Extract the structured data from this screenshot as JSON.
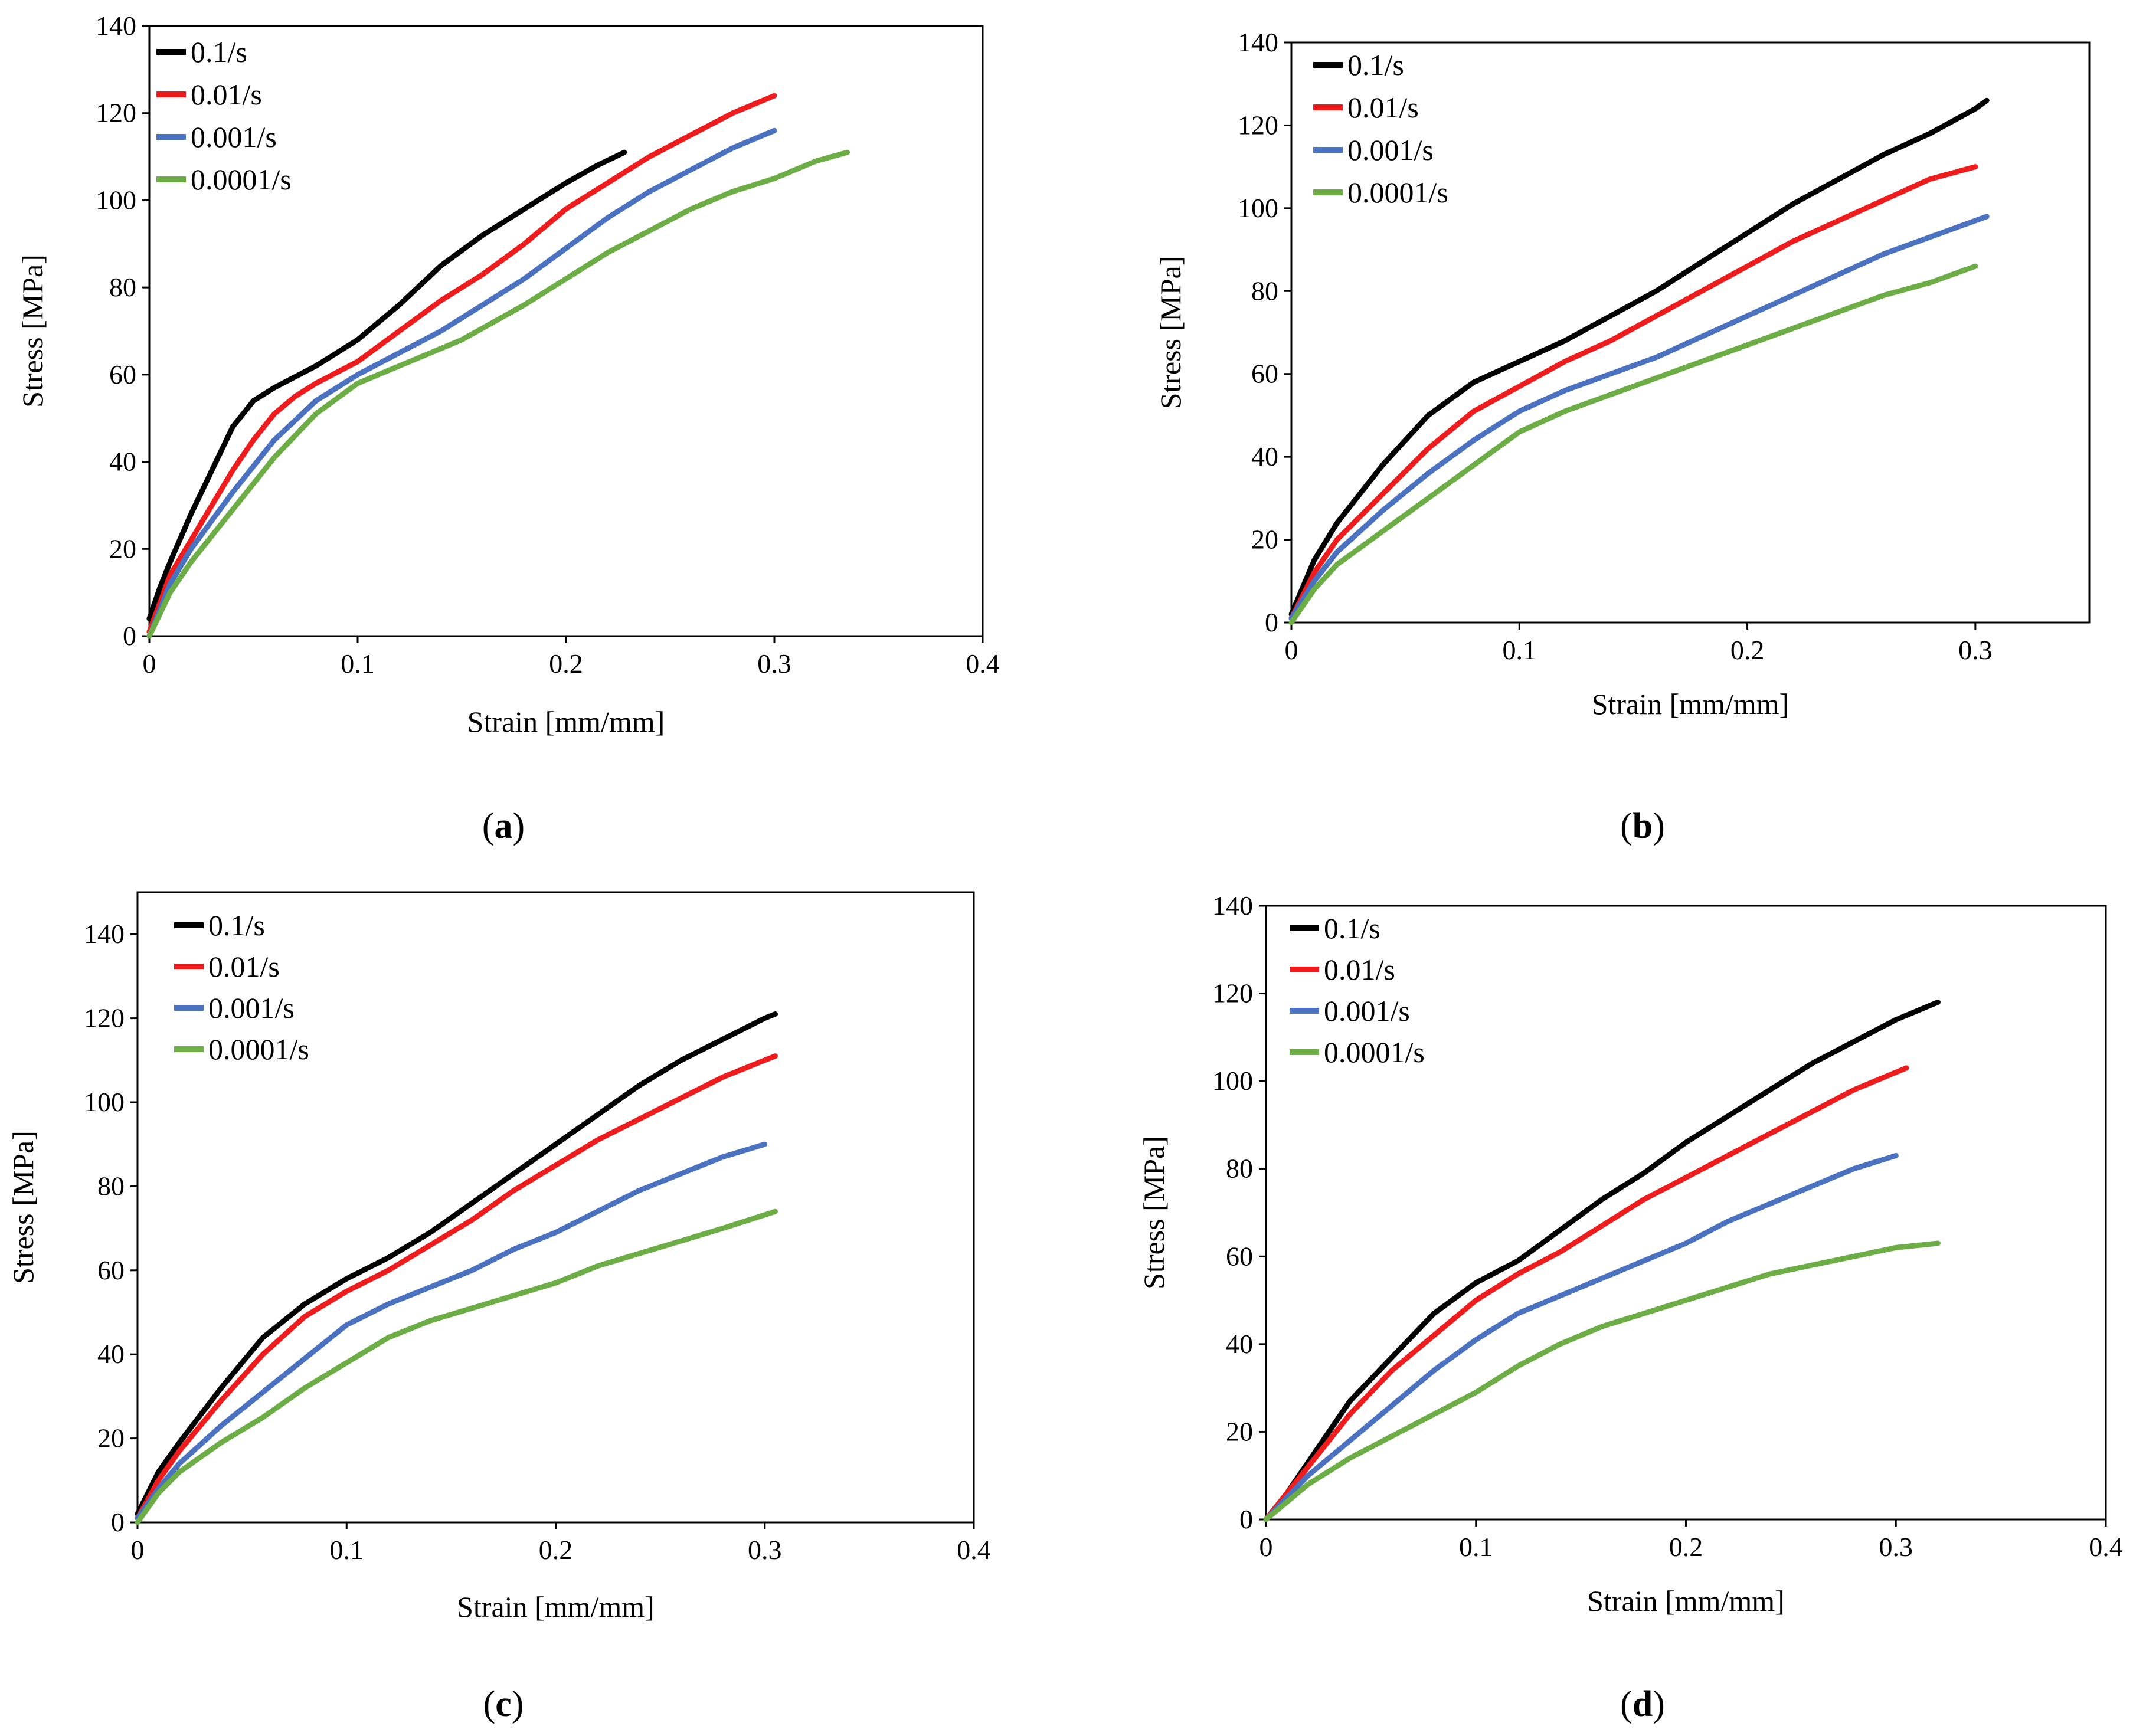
{
  "figure": {
    "legend_entries": [
      "0.1/s",
      "0.01/s",
      "0.001/s",
      "0.0001/s"
    ],
    "series_colors": [
      "#000000",
      "#ee1c1c",
      "#4a72c0",
      "#6cad45"
    ]
  },
  "chart_data": [
    {
      "type": "line",
      "caption": "(a)",
      "caption_letter": "a",
      "xlabel": "Strain [mm/mm]",
      "ylabel": "Stress [MPa]",
      "xlim": [
        0,
        0.4
      ],
      "ylim": [
        0,
        140
      ],
      "xticks": [
        0,
        0.1,
        0.2,
        0.3,
        0.4
      ],
      "xtick_labels": [
        "0",
        "0.1",
        "0.2",
        "0.3",
        "0.4"
      ],
      "yticks": [
        0,
        20,
        40,
        60,
        80,
        100,
        120,
        140
      ],
      "ytick_labels": [
        "0",
        "20",
        "40",
        "60",
        "80",
        "100",
        "120",
        "140"
      ],
      "legend_position": "top-left",
      "series": [
        {
          "name": "0.1/s",
          "color": "#000000",
          "x": [
            0,
            0.005,
            0.01,
            0.02,
            0.03,
            0.04,
            0.05,
            0.06,
            0.08,
            0.1,
            0.12,
            0.14,
            0.16,
            0.18,
            0.2,
            0.215,
            0.228
          ],
          "y": [
            4,
            11,
            17,
            28,
            38,
            48,
            54,
            57,
            62,
            68,
            76,
            85,
            92,
            98,
            104,
            108,
            111
          ]
        },
        {
          "name": "0.01/s",
          "color": "#ee1c1c",
          "x": [
            0,
            0.01,
            0.02,
            0.03,
            0.04,
            0.05,
            0.06,
            0.07,
            0.08,
            0.1,
            0.12,
            0.14,
            0.16,
            0.18,
            0.2,
            0.22,
            0.24,
            0.26,
            0.28,
            0.3
          ],
          "y": [
            1,
            14,
            22,
            30,
            38,
            45,
            51,
            55,
            58,
            63,
            70,
            77,
            83,
            90,
            98,
            104,
            110,
            115,
            120,
            124
          ]
        },
        {
          "name": "0.001/s",
          "color": "#4a72c0",
          "x": [
            0,
            0.01,
            0.02,
            0.04,
            0.06,
            0.08,
            0.1,
            0.12,
            0.14,
            0.16,
            0.18,
            0.2,
            0.22,
            0.24,
            0.26,
            0.28,
            0.3
          ],
          "y": [
            0,
            12,
            20,
            33,
            45,
            54,
            60,
            65,
            70,
            76,
            82,
            89,
            96,
            102,
            107,
            112,
            116
          ]
        },
        {
          "name": "0.0001/s",
          "color": "#6cad45",
          "x": [
            0,
            0.01,
            0.02,
            0.04,
            0.06,
            0.08,
            0.1,
            0.12,
            0.15,
            0.18,
            0.2,
            0.22,
            0.24,
            0.26,
            0.28,
            0.3,
            0.32,
            0.335
          ],
          "y": [
            0,
            10,
            17,
            29,
            41,
            51,
            58,
            62,
            68,
            76,
            82,
            88,
            93,
            98,
            102,
            105,
            109,
            111
          ]
        }
      ]
    },
    {
      "type": "line",
      "caption": "(b)",
      "caption_letter": "b",
      "xlabel": "Strain [mm/mm]",
      "ylabel": "Stress [MPa]",
      "xlim": [
        0,
        0.35
      ],
      "ylim": [
        0,
        140
      ],
      "xticks": [
        0,
        0.1,
        0.2,
        0.3
      ],
      "xtick_labels": [
        "0",
        "0.1",
        "0.2",
        "0.3"
      ],
      "yticks": [
        0,
        20,
        40,
        60,
        80,
        100,
        120,
        140
      ],
      "ytick_labels": [
        "0",
        "20",
        "40",
        "60",
        "80",
        "100",
        "120",
        "140"
      ],
      "legend_position": "top-left",
      "series": [
        {
          "name": "0.1/s",
          "color": "#000000",
          "x": [
            0,
            0.01,
            0.02,
            0.04,
            0.06,
            0.08,
            0.1,
            0.12,
            0.14,
            0.16,
            0.18,
            0.2,
            0.22,
            0.24,
            0.26,
            0.28,
            0.3,
            0.305
          ],
          "y": [
            2,
            15,
            24,
            38,
            50,
            58,
            63,
            68,
            74,
            80,
            87,
            94,
            101,
            107,
            113,
            118,
            124,
            126
          ]
        },
        {
          "name": "0.01/s",
          "color": "#ee1c1c",
          "x": [
            0,
            0.01,
            0.02,
            0.04,
            0.06,
            0.08,
            0.1,
            0.12,
            0.14,
            0.16,
            0.18,
            0.2,
            0.22,
            0.24,
            0.26,
            0.28,
            0.3
          ],
          "y": [
            1,
            12,
            20,
            31,
            42,
            51,
            57,
            63,
            68,
            74,
            80,
            86,
            92,
            97,
            102,
            107,
            110
          ]
        },
        {
          "name": "0.001/s",
          "color": "#4a72c0",
          "x": [
            0,
            0.01,
            0.02,
            0.04,
            0.06,
            0.08,
            0.1,
            0.12,
            0.14,
            0.16,
            0.18,
            0.2,
            0.22,
            0.24,
            0.26,
            0.28,
            0.305
          ],
          "y": [
            1,
            10,
            17,
            27,
            36,
            44,
            51,
            56,
            60,
            64,
            69,
            74,
            79,
            84,
            89,
            93,
            98
          ]
        },
        {
          "name": "0.0001/s",
          "color": "#6cad45",
          "x": [
            0,
            0.01,
            0.02,
            0.04,
            0.06,
            0.08,
            0.1,
            0.12,
            0.14,
            0.16,
            0.18,
            0.2,
            0.22,
            0.24,
            0.26,
            0.28,
            0.3
          ],
          "y": [
            0,
            8,
            14,
            22,
            30,
            38,
            46,
            51,
            55,
            59,
            63,
            67,
            71,
            75,
            79,
            82,
            86
          ]
        }
      ]
    },
    {
      "type": "line",
      "caption": "(c)",
      "caption_letter": "c",
      "xlabel": "Strain [mm/mm]",
      "ylabel": "Stress [MPa]",
      "xlim": [
        0,
        0.4
      ],
      "ylim": [
        0,
        150
      ],
      "xticks": [
        0,
        0.1,
        0.2,
        0.3,
        0.4
      ],
      "xtick_labels": [
        "0",
        "0.1",
        "0.2",
        "0.3",
        "0.4"
      ],
      "yticks": [
        0,
        20,
        40,
        60,
        80,
        100,
        120,
        140
      ],
      "ytick_labels": [
        "0",
        "20",
        "40",
        "60",
        "80",
        "100",
        "120",
        "140"
      ],
      "legend_position": "top-left",
      "series": [
        {
          "name": "0.1/s",
          "color": "#000000",
          "x": [
            0,
            0.01,
            0.02,
            0.04,
            0.06,
            0.08,
            0.1,
            0.12,
            0.14,
            0.16,
            0.18,
            0.2,
            0.22,
            0.24,
            0.26,
            0.28,
            0.3,
            0.305
          ],
          "y": [
            2,
            12,
            19,
            32,
            44,
            52,
            58,
            63,
            69,
            76,
            83,
            90,
            97,
            104,
            110,
            115,
            120,
            121
          ]
        },
        {
          "name": "0.01/s",
          "color": "#ee1c1c",
          "x": [
            0,
            0.01,
            0.02,
            0.04,
            0.06,
            0.08,
            0.1,
            0.12,
            0.14,
            0.16,
            0.18,
            0.2,
            0.22,
            0.24,
            0.26,
            0.28,
            0.3,
            0.305
          ],
          "y": [
            1,
            10,
            17,
            29,
            40,
            49,
            55,
            60,
            66,
            72,
            79,
            85,
            91,
            96,
            101,
            106,
            110,
            111
          ]
        },
        {
          "name": "0.001/s",
          "color": "#4a72c0",
          "x": [
            0,
            0.01,
            0.02,
            0.04,
            0.06,
            0.08,
            0.1,
            0.12,
            0.14,
            0.16,
            0.18,
            0.2,
            0.22,
            0.24,
            0.26,
            0.28,
            0.3
          ],
          "y": [
            1,
            8,
            14,
            23,
            31,
            39,
            47,
            52,
            56,
            60,
            65,
            69,
            74,
            79,
            83,
            87,
            90
          ]
        },
        {
          "name": "0.0001/s",
          "color": "#6cad45",
          "x": [
            0,
            0.01,
            0.02,
            0.04,
            0.06,
            0.08,
            0.1,
            0.12,
            0.14,
            0.16,
            0.18,
            0.2,
            0.22,
            0.24,
            0.26,
            0.28,
            0.305
          ],
          "y": [
            0,
            7,
            12,
            19,
            25,
            32,
            38,
            44,
            48,
            51,
            54,
            57,
            61,
            64,
            67,
            70,
            74
          ]
        }
      ]
    },
    {
      "type": "line",
      "caption": "(d)",
      "caption_letter": "d",
      "xlabel": "Strain [mm/mm]",
      "ylabel": "Stress [MPa]",
      "xlim": [
        0,
        0.4
      ],
      "ylim": [
        0,
        140
      ],
      "xticks": [
        0,
        0.1,
        0.2,
        0.3,
        0.4
      ],
      "xtick_labels": [
        "0",
        "0.1",
        "0.2",
        "0.3",
        "0.4"
      ],
      "yticks": [
        0,
        20,
        40,
        60,
        80,
        100,
        120,
        140
      ],
      "ytick_labels": [
        "0",
        "20",
        "40",
        "60",
        "80",
        "100",
        "120",
        "140"
      ],
      "legend_position": "top-left",
      "series": [
        {
          "name": "0.1/s",
          "color": "#000000",
          "x": [
            0,
            0.01,
            0.02,
            0.03,
            0.04,
            0.06,
            0.08,
            0.1,
            0.12,
            0.14,
            0.16,
            0.18,
            0.2,
            0.22,
            0.24,
            0.26,
            0.28,
            0.3,
            0.32
          ],
          "y": [
            0,
            6,
            13,
            20,
            27,
            37,
            47,
            54,
            59,
            66,
            73,
            79,
            86,
            92,
            98,
            104,
            109,
            114,
            118
          ]
        },
        {
          "name": "0.01/s",
          "color": "#ee1c1c",
          "x": [
            0,
            0.01,
            0.02,
            0.03,
            0.04,
            0.06,
            0.08,
            0.1,
            0.12,
            0.14,
            0.16,
            0.18,
            0.2,
            0.22,
            0.24,
            0.26,
            0.28,
            0.305
          ],
          "y": [
            0,
            6,
            12,
            18,
            24,
            34,
            42,
            50,
            56,
            61,
            67,
            73,
            78,
            83,
            88,
            93,
            98,
            103
          ]
        },
        {
          "name": "0.001/s",
          "color": "#4a72c0",
          "x": [
            0,
            0.01,
            0.02,
            0.04,
            0.06,
            0.08,
            0.1,
            0.12,
            0.14,
            0.16,
            0.18,
            0.2,
            0.22,
            0.24,
            0.26,
            0.28,
            0.3
          ],
          "y": [
            0,
            5,
            10,
            18,
            26,
            34,
            41,
            47,
            51,
            55,
            59,
            63,
            68,
            72,
            76,
            80,
            83
          ]
        },
        {
          "name": "0.0001/s",
          "color": "#6cad45",
          "x": [
            0,
            0.01,
            0.02,
            0.04,
            0.06,
            0.08,
            0.1,
            0.12,
            0.14,
            0.16,
            0.18,
            0.2,
            0.22,
            0.24,
            0.26,
            0.28,
            0.3,
            0.32
          ],
          "y": [
            0,
            4,
            8,
            14,
            19,
            24,
            29,
            35,
            40,
            44,
            47,
            50,
            53,
            56,
            58,
            60,
            62,
            63
          ]
        }
      ]
    }
  ]
}
